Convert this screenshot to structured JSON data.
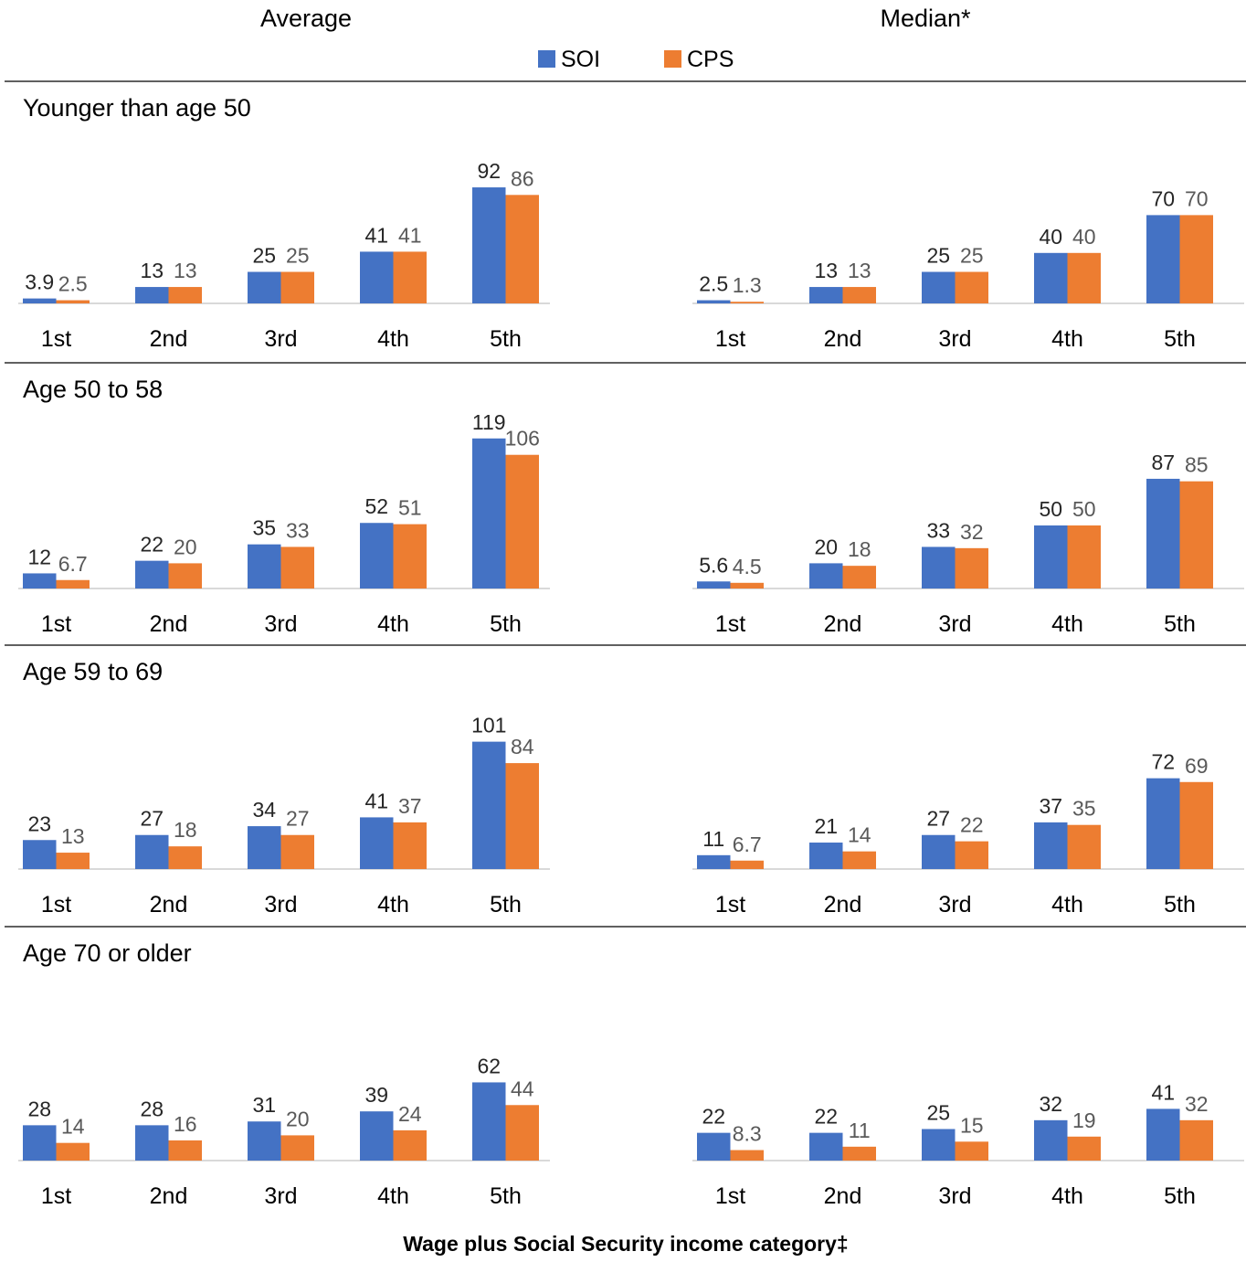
{
  "chart_data": {
    "type": "bar",
    "column_titles": [
      "Average",
      "Median*"
    ],
    "xlabel": "Wage plus Social Security income category‡",
    "ylabel": "",
    "legend_position": "top-center",
    "colors": {
      "SOI": "#4472C4",
      "CPS": "#ED7D31",
      "value_label_SOI": "#262626",
      "value_label_CPS": "#595959",
      "axis": "#d9d9d9",
      "separator": "#000000"
    },
    "categories": [
      "1st",
      "2nd",
      "3rd",
      "4th",
      "5th"
    ],
    "series_names": [
      "SOI",
      "CPS"
    ],
    "panels": [
      {
        "title": "Younger than age 50",
        "average": {
          "SOI": {
            "values": [
              3.9,
              13,
              25,
              41,
              92
            ],
            "labels": [
              "3.9",
              "13",
              "25",
              "41",
              "92"
            ]
          },
          "CPS": {
            "values": [
              2.5,
              13,
              25,
              41,
              86
            ],
            "labels": [
              "2.5",
              "13",
              "25",
              "41",
              "86"
            ]
          }
        },
        "median": {
          "SOI": {
            "values": [
              2.5,
              13,
              25,
              40,
              70
            ],
            "labels": [
              "2.5",
              "13",
              "25",
              "40",
              "70"
            ]
          },
          "CPS": {
            "values": [
              1.3,
              13,
              25,
              40,
              70
            ],
            "labels": [
              "1.3",
              "13",
              "25",
              "40",
              "70"
            ]
          }
        }
      },
      {
        "title": "Age 50 to 58",
        "average": {
          "SOI": {
            "values": [
              12,
              22,
              35,
              52,
              119
            ],
            "labels": [
              "12",
              "22",
              "35",
              "52",
              "119"
            ]
          },
          "CPS": {
            "values": [
              6.7,
              20,
              33,
              51,
              106
            ],
            "labels": [
              "6.7",
              "20",
              "33",
              "51",
              "106"
            ]
          }
        },
        "median": {
          "SOI": {
            "values": [
              5.6,
              20,
              33,
              50,
              87
            ],
            "labels": [
              "5.6",
              "20",
              "33",
              "50",
              "87"
            ]
          },
          "CPS": {
            "values": [
              4.5,
              18,
              32,
              50,
              85
            ],
            "labels": [
              "4.5",
              "18",
              "32",
              "50",
              "85"
            ]
          }
        }
      },
      {
        "title": "Age 59 to 69",
        "average": {
          "SOI": {
            "values": [
              23,
              27,
              34,
              41,
              101
            ],
            "labels": [
              "23",
              "27",
              "34",
              "41",
              "101"
            ]
          },
          "CPS": {
            "values": [
              13,
              18,
              27,
              37,
              84
            ],
            "labels": [
              "13",
              "18",
              "27",
              "37",
              "84"
            ]
          }
        },
        "median": {
          "SOI": {
            "values": [
              11,
              21,
              27,
              37,
              72
            ],
            "labels": [
              "11",
              "21",
              "27",
              "37",
              "72"
            ]
          },
          "CPS": {
            "values": [
              6.7,
              14,
              22,
              35,
              69
            ],
            "labels": [
              "6.7",
              "14",
              "22",
              "35",
              "69"
            ]
          }
        }
      },
      {
        "title": "Age 70 or older",
        "average": {
          "SOI": {
            "values": [
              28,
              28,
              31,
              39,
              62
            ],
            "labels": [
              "28",
              "28",
              "31",
              "39",
              "62"
            ]
          },
          "CPS": {
            "values": [
              14,
              16,
              20,
              24,
              44
            ],
            "labels": [
              "14",
              "16",
              "20",
              "24",
              "44"
            ]
          }
        },
        "median": {
          "SOI": {
            "values": [
              22,
              22,
              25,
              32,
              41
            ],
            "labels": [
              "22",
              "22",
              "25",
              "32",
              "41"
            ]
          },
          "CPS": {
            "values": [
              8.3,
              11,
              15,
              19,
              32
            ],
            "labels": [
              "8.3",
              "11",
              "15",
              "19",
              "32"
            ]
          }
        }
      }
    ]
  }
}
